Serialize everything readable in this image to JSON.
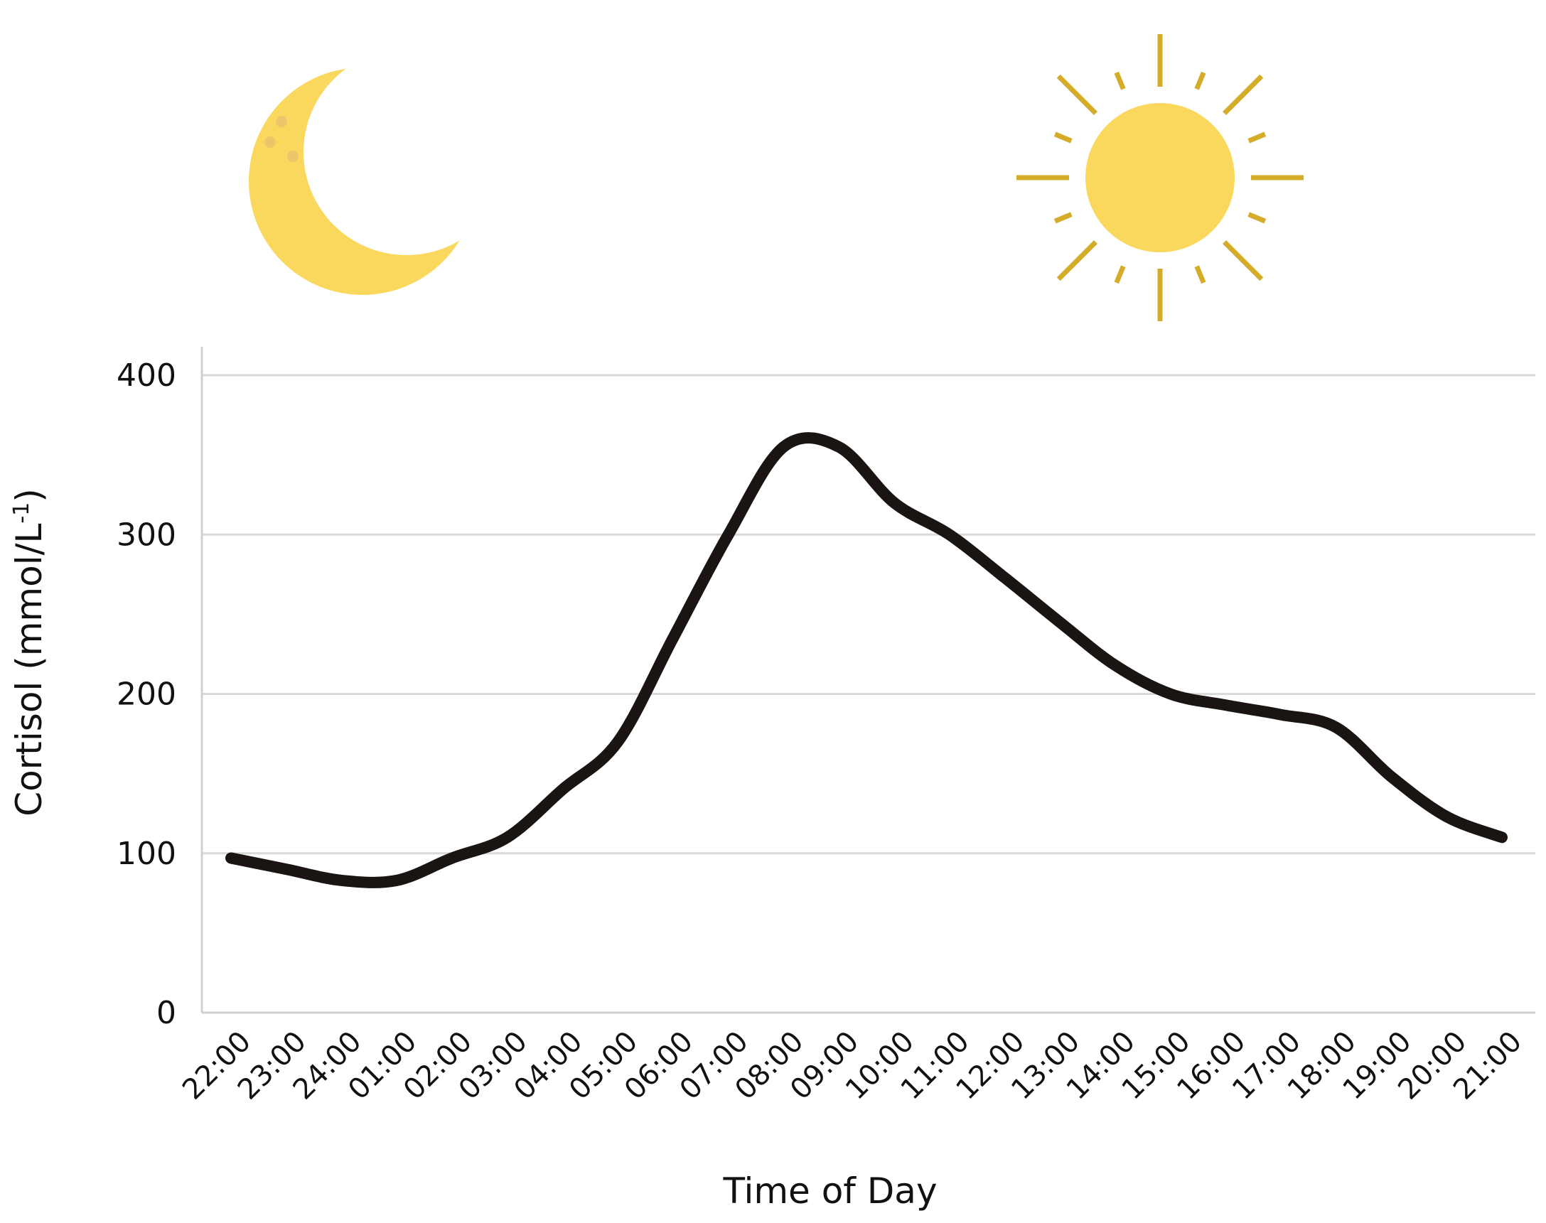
{
  "icons": {
    "moon": "crescent-moon-icon",
    "sun": "sun-icon",
    "moon_color": "#FAD85D",
    "moon_spot_color": "#E8C46A",
    "sun_color": "#FAD85D",
    "sun_ray_color": "#D4AC2A"
  },
  "colors": {
    "line": "#1a1512",
    "grid": "#d9d9d9",
    "axis": "#d0d0d0"
  },
  "chart_data": {
    "type": "line",
    "xlabel": "Time of Day",
    "ylabel": "Cortisol (mmol/L",
    "ylabel_superscript": "-1",
    "ylabel_close": ")",
    "ylim": [
      0,
      400
    ],
    "yticks": [
      "0",
      "100",
      "200",
      "300",
      "400"
    ],
    "grid": true,
    "legend": "none",
    "categories": [
      "22:00",
      "23:00",
      "24:00",
      "01:00",
      "02:00",
      "03:00",
      "04:00",
      "05:00",
      "06:00",
      "07:00",
      "08:00",
      "09:00",
      "10:00",
      "11:00",
      "12:00",
      "13:00",
      "14:00",
      "15:00",
      "16:00",
      "17:00",
      "18:00",
      "19:00",
      "20:00",
      "21:00"
    ],
    "series": [
      {
        "values": [
          97,
          90,
          83,
          83,
          97,
          110,
          140,
          170,
          235,
          300,
          355,
          355,
          320,
          300,
          273,
          245,
          218,
          200,
          193,
          187,
          179,
          148,
          123,
          110
        ]
      }
    ]
  }
}
